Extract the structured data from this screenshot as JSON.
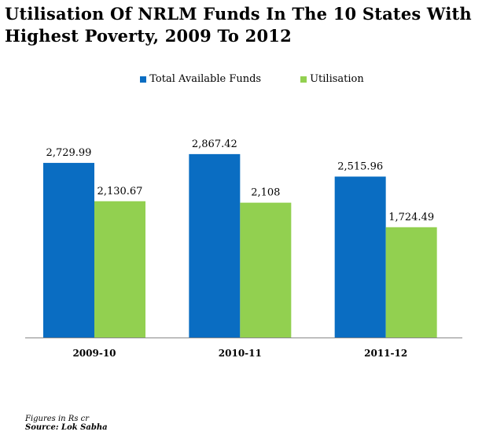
{
  "chart_data": {
    "type": "bar",
    "title": "Utilisation Of NRLM Funds In The 10 States With Highest Poverty, 2009 To 2012",
    "categories": [
      "2009-10",
      "2010-11",
      "2011-12"
    ],
    "series": [
      {
        "name": "Total Available Funds",
        "color": "#0a6dc2",
        "values": [
          2729.99,
          2867.42,
          2515.96
        ],
        "labels": [
          "2,729.99",
          "2,867.42",
          "2,515.96"
        ]
      },
      {
        "name": "Utilisation",
        "color": "#92d050",
        "values": [
          2130.67,
          2108,
          1724.49
        ],
        "labels": [
          "2,130.67",
          "2,108",
          "1,724.49"
        ]
      }
    ],
    "ylim": [
      0,
      3300
    ],
    "grid": false,
    "legend_position": "top"
  },
  "footnote": {
    "units": "Figures in Rs cr",
    "source": "Source: Lok Sabha"
  }
}
